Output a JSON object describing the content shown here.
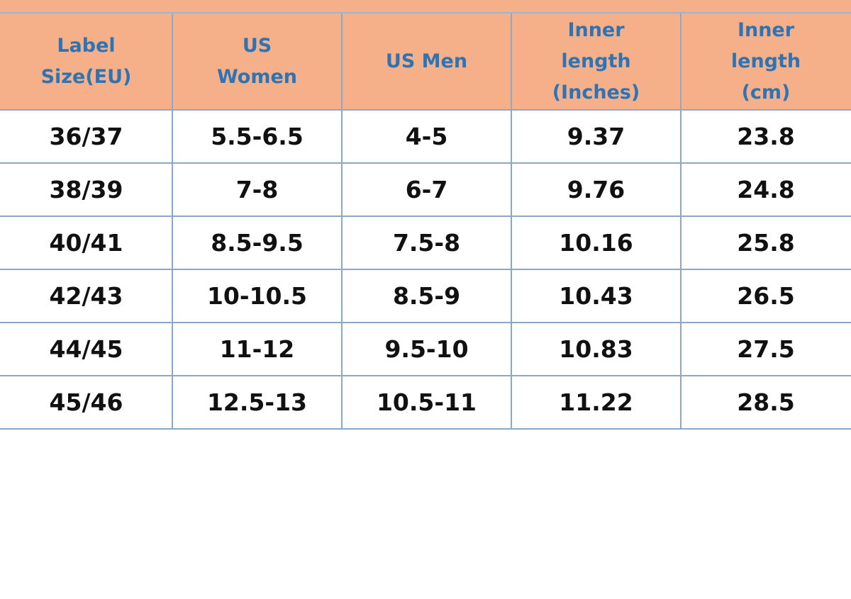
{
  "table": {
    "header": [
      "Label Size(EU)",
      "US Women",
      "US Men",
      "Inner length (Inches)",
      "Inner length (cm)"
    ],
    "rows": [
      [
        "36/37",
        "5.5-6.5",
        "4-5",
        "9.37",
        "23.8"
      ],
      [
        "38/39",
        "7-8",
        "6-7",
        "9.76",
        "24.8"
      ],
      [
        "40/41",
        "8.5-9.5",
        "7.5-8",
        "10.16",
        "25.8"
      ],
      [
        "42/43",
        "10-10.5",
        "8.5-9",
        "10.43",
        "26.5"
      ],
      [
        "44/45",
        "11-12",
        "9.5-10",
        "10.83",
        "27.5"
      ],
      [
        "45/46",
        "12.5-13",
        "10.5-11",
        "11.22",
        "28.5"
      ]
    ]
  }
}
